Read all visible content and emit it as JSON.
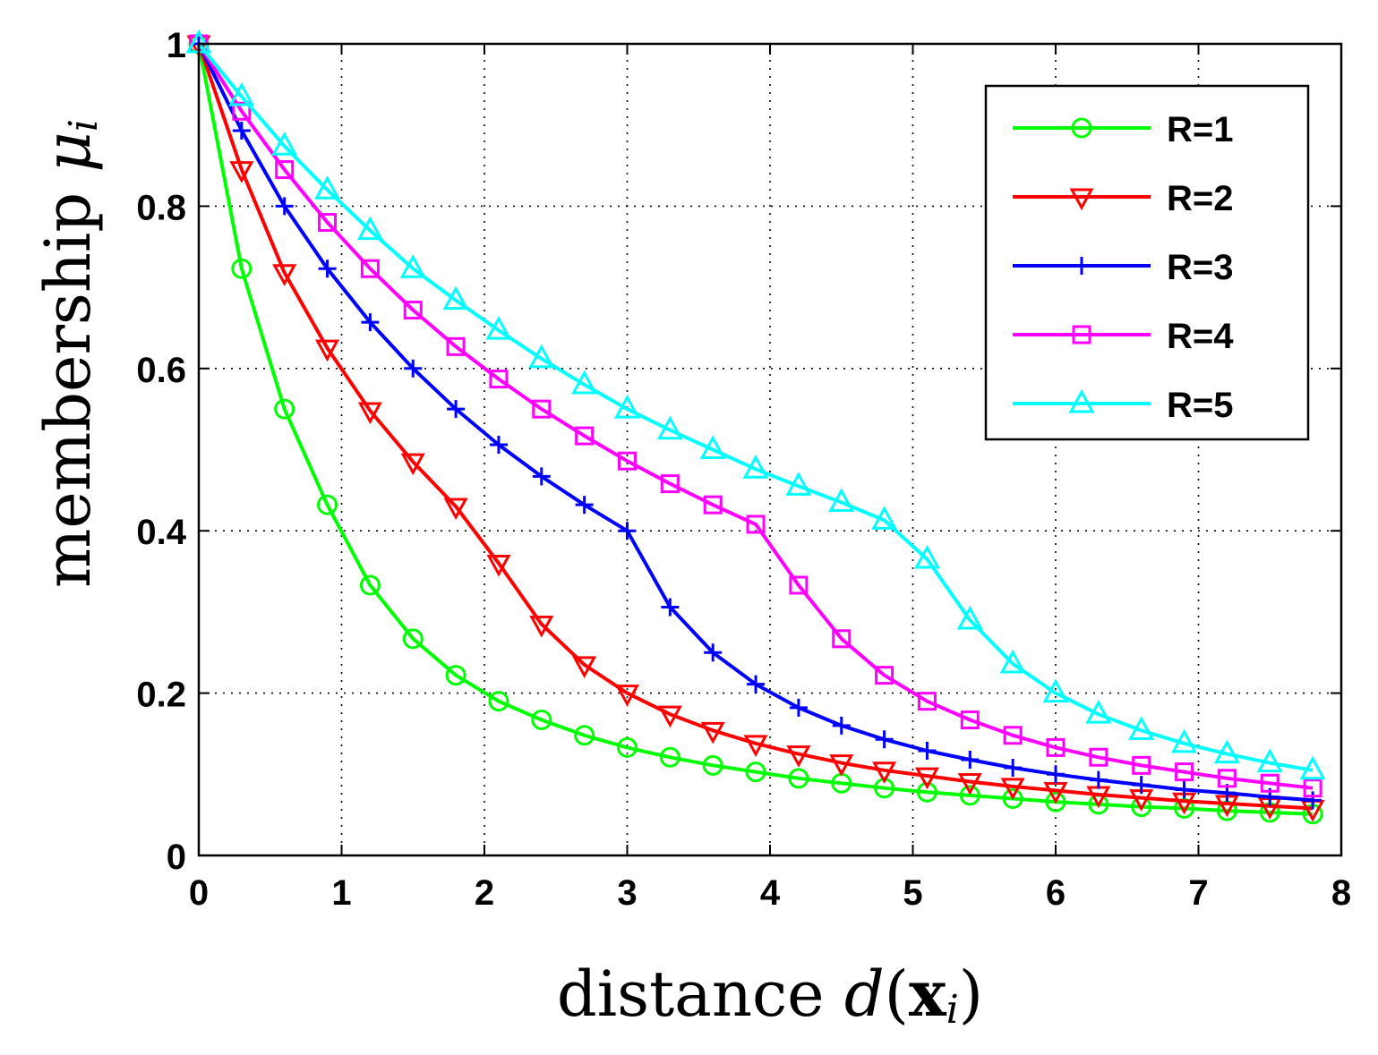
{
  "chart_data": {
    "type": "line",
    "title": "",
    "xlabel": {
      "main": "distance ",
      "func": "d",
      "open": "(",
      "bold": "x",
      "sub": "i",
      "close": ")"
    },
    "ylabel": {
      "main": "membership ",
      "greek": "μ",
      "sub": "i"
    },
    "xlim": [
      0,
      8
    ],
    "ylim": [
      0,
      1
    ],
    "xticks": [
      0,
      1,
      2,
      3,
      4,
      5,
      6,
      7,
      8
    ],
    "xtick_labels": [
      "0",
      "1",
      "2",
      "3",
      "4",
      "5",
      "6",
      "7",
      "8"
    ],
    "yticks": [
      0,
      0.2,
      0.4,
      0.6,
      0.8,
      1
    ],
    "ytick_labels": [
      "0",
      "0.2",
      "0.4",
      "0.6",
      "0.8",
      "1"
    ],
    "grid": true,
    "legend_position": "top-right",
    "x": [
      0,
      0.3,
      0.6,
      0.9,
      1.2,
      1.5,
      1.8,
      2.1,
      2.4,
      2.7,
      3.0,
      3.3,
      3.6,
      3.9,
      4.2,
      4.5,
      4.8,
      5.1,
      5.4,
      5.7,
      6.0,
      6.3,
      6.6,
      6.9,
      7.2,
      7.5,
      7.8
    ],
    "series": [
      {
        "name": "R=1",
        "color": "#00ff00",
        "marker": "circle",
        "values": [
          1.0,
          0.723,
          0.55,
          0.432,
          0.333,
          0.267,
          0.222,
          0.19,
          0.167,
          0.148,
          0.133,
          0.121,
          0.111,
          0.103,
          0.095,
          0.089,
          0.083,
          0.078,
          0.074,
          0.07,
          0.066,
          0.063,
          0.06,
          0.058,
          0.055,
          0.053,
          0.051
        ]
      },
      {
        "name": "R=2",
        "color": "#ff0000",
        "marker": "triangle-down",
        "values": [
          1.0,
          0.845,
          0.718,
          0.625,
          0.548,
          0.485,
          0.43,
          0.36,
          0.285,
          0.235,
          0.2,
          0.174,
          0.154,
          0.138,
          0.125,
          0.114,
          0.105,
          0.098,
          0.091,
          0.085,
          0.08,
          0.075,
          0.071,
          0.067,
          0.064,
          0.061,
          0.058
        ]
      },
      {
        "name": "R=3",
        "color": "#0000ff",
        "marker": "plus",
        "values": [
          1.0,
          0.893,
          0.8,
          0.723,
          0.657,
          0.6,
          0.55,
          0.506,
          0.467,
          0.432,
          0.4,
          0.306,
          0.25,
          0.211,
          0.182,
          0.16,
          0.143,
          0.129,
          0.118,
          0.108,
          0.1,
          0.093,
          0.087,
          0.081,
          0.077,
          0.072,
          0.068
        ]
      },
      {
        "name": "R=4",
        "color": "#ff00ff",
        "marker": "square",
        "values": [
          1.0,
          0.917,
          0.845,
          0.78,
          0.723,
          0.672,
          0.627,
          0.587,
          0.55,
          0.517,
          0.486,
          0.458,
          0.432,
          0.408,
          0.333,
          0.267,
          0.222,
          0.19,
          0.167,
          0.148,
          0.133,
          0.121,
          0.111,
          0.103,
          0.095,
          0.089,
          0.083
        ]
      },
      {
        "name": "R=5",
        "color": "#00ffff",
        "marker": "triangle-up",
        "values": [
          1.0,
          0.935,
          0.874,
          0.82,
          0.77,
          0.723,
          0.684,
          0.647,
          0.612,
          0.58,
          0.55,
          0.524,
          0.5,
          0.476,
          0.455,
          0.435,
          0.413,
          0.365,
          0.29,
          0.236,
          0.2,
          0.174,
          0.154,
          0.138,
          0.125,
          0.114,
          0.105
        ]
      }
    ]
  }
}
